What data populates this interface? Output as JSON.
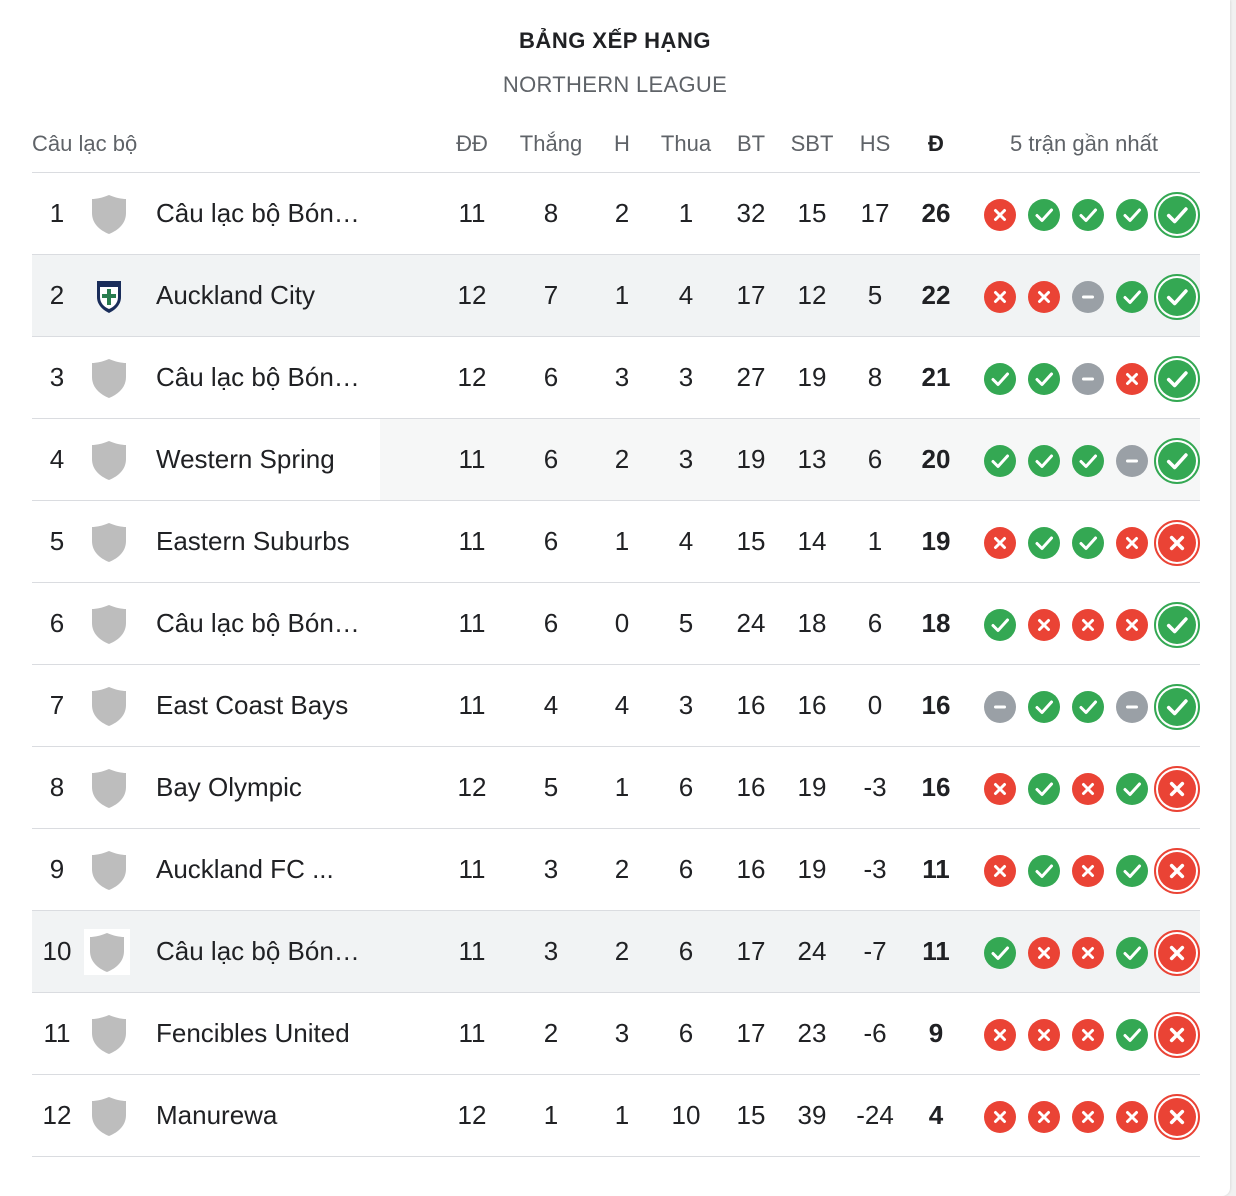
{
  "title": "BẢNG XẾP HẠNG",
  "subtitle": "NORTHERN LEAGUE",
  "columns": {
    "club": "Câu lạc bộ",
    "played": "ĐĐ",
    "won": "Thắng",
    "drawn": "H",
    "lost": "Thua",
    "gf": "BT",
    "ga": "SBT",
    "gd": "HS",
    "points": "Đ",
    "form": "5 trận gần nhất"
  },
  "colors": {
    "win": "#34a853",
    "loss": "#ea4335",
    "draw": "#9aa0a6"
  },
  "rows": [
    {
      "rank": "1",
      "name": "Câu lạc bộ Bóng đá",
      "played": "11",
      "won": "8",
      "drawn": "2",
      "lost": "1",
      "gf": "32",
      "ga": "15",
      "gd": "17",
      "points": "26",
      "form": [
        "L",
        "W",
        "W",
        "W",
        "W"
      ],
      "logo": "shield-icon",
      "highlight": false
    },
    {
      "rank": "2",
      "name": "Auckland City",
      "played": "12",
      "won": "7",
      "drawn": "1",
      "lost": "4",
      "gf": "17",
      "ga": "12",
      "gd": "5",
      "points": "22",
      "form": [
        "L",
        "L",
        "D",
        "W",
        "W"
      ],
      "logo": "club-crest-icon",
      "highlight": true
    },
    {
      "rank": "3",
      "name": "Câu lạc bộ Bóng đá",
      "played": "12",
      "won": "6",
      "drawn": "3",
      "lost": "3",
      "gf": "27",
      "ga": "19",
      "gd": "8",
      "points": "21",
      "form": [
        "W",
        "W",
        "D",
        "L",
        "W"
      ],
      "logo": "shield-icon",
      "highlight": false
    },
    {
      "rank": "4",
      "name": "Western Spring",
      "played": "11",
      "won": "6",
      "drawn": "2",
      "lost": "3",
      "gf": "19",
      "ga": "13",
      "gd": "6",
      "points": "20",
      "form": [
        "W",
        "W",
        "W",
        "D",
        "W"
      ],
      "logo": "shield-icon",
      "highlight": false,
      "partial": true
    },
    {
      "rank": "5",
      "name": "Eastern Suburbs",
      "played": "11",
      "won": "6",
      "drawn": "1",
      "lost": "4",
      "gf": "15",
      "ga": "14",
      "gd": "1",
      "points": "19",
      "form": [
        "L",
        "W",
        "W",
        "L",
        "L"
      ],
      "logo": "shield-icon",
      "highlight": false
    },
    {
      "rank": "6",
      "name": "Câu lạc bộ Bóng đá",
      "played": "11",
      "won": "6",
      "drawn": "0",
      "lost": "5",
      "gf": "24",
      "ga": "18",
      "gd": "6",
      "points": "18",
      "form": [
        "W",
        "L",
        "L",
        "L",
        "W"
      ],
      "logo": "shield-icon",
      "highlight": false
    },
    {
      "rank": "7",
      "name": "East Coast Bays",
      "played": "11",
      "won": "4",
      "drawn": "4",
      "lost": "3",
      "gf": "16",
      "ga": "16",
      "gd": "0",
      "points": "16",
      "form": [
        "D",
        "W",
        "W",
        "D",
        "W"
      ],
      "logo": "shield-icon",
      "highlight": false
    },
    {
      "rank": "8",
      "name": "Bay Olympic",
      "played": "12",
      "won": "5",
      "drawn": "1",
      "lost": "6",
      "gf": "16",
      "ga": "19",
      "gd": "-3",
      "points": "16",
      "form": [
        "L",
        "W",
        "L",
        "W",
        "L"
      ],
      "logo": "shield-icon",
      "highlight": false
    },
    {
      "rank": "9",
      "name": "Auckland FC ...",
      "played": "11",
      "won": "3",
      "drawn": "2",
      "lost": "6",
      "gf": "16",
      "ga": "19",
      "gd": "-3",
      "points": "11",
      "form": [
        "L",
        "W",
        "L",
        "W",
        "L"
      ],
      "logo": "shield-icon",
      "highlight": false
    },
    {
      "rank": "10",
      "name": "Câu lạc bộ Bóng đá",
      "played": "11",
      "won": "3",
      "drawn": "2",
      "lost": "6",
      "gf": "17",
      "ga": "24",
      "gd": "-7",
      "points": "11",
      "form": [
        "W",
        "L",
        "L",
        "W",
        "L"
      ],
      "logo": "shield-icon",
      "highlight": true,
      "boxedLogo": true
    },
    {
      "rank": "11",
      "name": "Fencibles United",
      "played": "11",
      "won": "2",
      "drawn": "3",
      "lost": "6",
      "gf": "17",
      "ga": "23",
      "gd": "-6",
      "points": "9",
      "form": [
        "L",
        "L",
        "L",
        "W",
        "L"
      ],
      "logo": "shield-icon",
      "highlight": false
    },
    {
      "rank": "12",
      "name": "Manurewa",
      "played": "12",
      "won": "1",
      "drawn": "1",
      "lost": "10",
      "gf": "15",
      "ga": "39",
      "gd": "-24",
      "points": "4",
      "form": [
        "L",
        "L",
        "L",
        "L",
        "L"
      ],
      "logo": "shield-icon",
      "highlight": false
    }
  ]
}
